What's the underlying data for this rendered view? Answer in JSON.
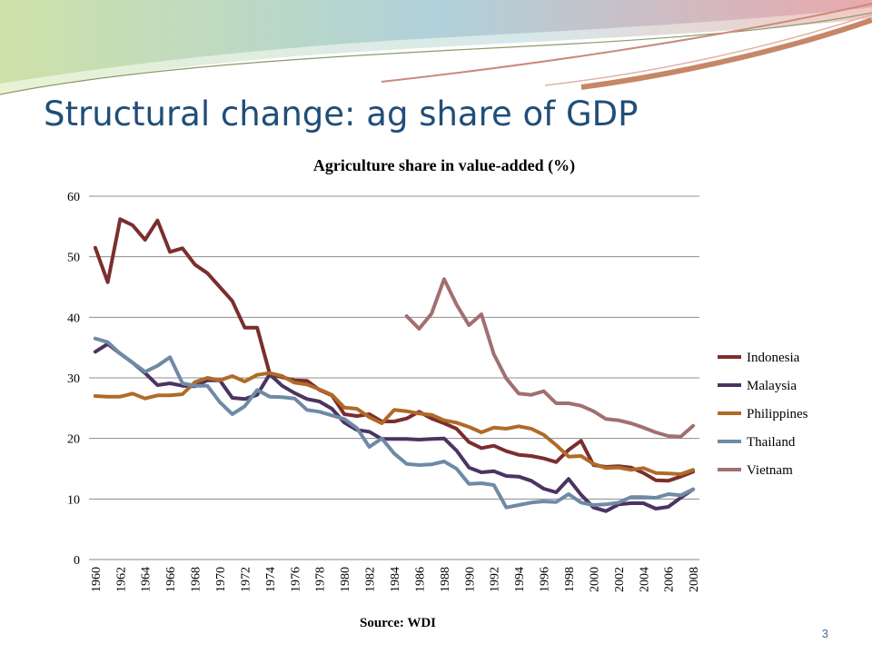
{
  "slide": {
    "title": "Structural change: ag share of GDP",
    "page_number": "3"
  },
  "colors": {
    "title": "#1f4e79",
    "Indonesia": "#7b2e2e",
    "Malaysia": "#4b3461",
    "Philippines": "#b06a28",
    "Thailand": "#6f8aa6",
    "Vietnam": "#a26f70"
  },
  "chart_data": {
    "type": "line",
    "title": "Agriculture share in value-added (%)",
    "xlabel": "Source: WDI",
    "ylabel": "",
    "ylim": [
      0,
      60
    ],
    "yticks": [
      "0",
      "10",
      "20",
      "30",
      "40",
      "50",
      "60"
    ],
    "xticks": [
      "1960",
      "1962",
      "1964",
      "1966",
      "1968",
      "1970",
      "1972",
      "1974",
      "1976",
      "1978",
      "1980",
      "1982",
      "1984",
      "1986",
      "1988",
      "1990",
      "1992",
      "1994",
      "1996",
      "1998",
      "2000",
      "2002",
      "2004",
      "2006",
      "2008"
    ],
    "grid": true,
    "legend_position": "right",
    "x": [
      1960,
      1961,
      1962,
      1963,
      1964,
      1965,
      1966,
      1967,
      1968,
      1969,
      1970,
      1971,
      1972,
      1973,
      1974,
      1975,
      1976,
      1977,
      1978,
      1979,
      1980,
      1981,
      1982,
      1983,
      1984,
      1985,
      1986,
      1987,
      1988,
      1989,
      1990,
      1991,
      1992,
      1993,
      1994,
      1995,
      1996,
      1997,
      1998,
      1999,
      2000,
      2001,
      2002,
      2003,
      2004,
      2005,
      2006,
      2007,
      2008
    ],
    "series": [
      {
        "name": "Indonesia",
        "values": [
          51.5,
          45.8,
          56.2,
          55.2,
          52.8,
          56.0,
          50.8,
          51.4,
          48.7,
          47.3,
          45.0,
          42.7,
          38.3,
          38.3,
          30.7,
          30.1,
          29.6,
          29.5,
          28.0,
          27.1,
          24.0,
          23.7,
          24.0,
          22.8,
          22.8,
          23.3,
          24.4,
          23.3,
          22.5,
          21.6,
          19.4,
          18.4,
          18.8,
          17.9,
          17.3,
          17.1,
          16.7,
          16.1,
          18.1,
          19.6,
          15.6,
          15.3,
          15.4,
          15.2,
          14.3,
          13.1,
          13.0,
          13.7,
          14.5
        ]
      },
      {
        "name": "Malaysia",
        "values": [
          34.3,
          35.6,
          34.0,
          32.5,
          30.8,
          28.8,
          29.1,
          28.7,
          28.6,
          29.6,
          29.6,
          26.7,
          26.5,
          27.2,
          30.6,
          28.7,
          27.5,
          26.5,
          26.1,
          24.9,
          22.6,
          21.4,
          21.1,
          19.9,
          19.9,
          19.9,
          19.8,
          19.9,
          20.0,
          18.0,
          15.2,
          14.4,
          14.6,
          13.8,
          13.7,
          13.0,
          11.7,
          11.1,
          13.3,
          10.7,
          8.6,
          8.0,
          9.1,
          9.3,
          9.3,
          8.4,
          8.7,
          10.2,
          11.6
        ]
      },
      {
        "name": "Philippines",
        "values": [
          27.0,
          26.9,
          26.9,
          27.4,
          26.6,
          27.1,
          27.1,
          27.3,
          29.3,
          30.0,
          29.6,
          30.3,
          29.4,
          30.5,
          30.8,
          30.3,
          29.2,
          28.9,
          28.1,
          27.2,
          25.1,
          24.9,
          23.5,
          22.5,
          24.7,
          24.5,
          24.1,
          23.9,
          23.0,
          22.6,
          21.9,
          21.0,
          21.8,
          21.6,
          22.0,
          21.6,
          20.6,
          18.9,
          17.0,
          17.1,
          15.8,
          15.1,
          15.2,
          14.8,
          15.1,
          14.3,
          14.2,
          14.1,
          14.8
        ]
      },
      {
        "name": "Thailand",
        "values": [
          36.5,
          35.9,
          34.0,
          32.5,
          31.0,
          32.0,
          33.4,
          29.1,
          28.7,
          28.7,
          26.0,
          24.0,
          25.3,
          28.0,
          26.9,
          26.8,
          26.6,
          24.7,
          24.4,
          23.8,
          23.2,
          21.7,
          18.6,
          20.0,
          17.5,
          15.8,
          15.6,
          15.7,
          16.2,
          15.0,
          12.5,
          12.6,
          12.3,
          8.6,
          9.0,
          9.4,
          9.6,
          9.5,
          10.8,
          9.4,
          9.0,
          9.1,
          9.4,
          10.3,
          10.3,
          10.2,
          10.8,
          10.6,
          11.6
        ]
      },
      {
        "name": "Vietnam",
        "values": [
          null,
          null,
          null,
          null,
          null,
          null,
          null,
          null,
          null,
          null,
          null,
          null,
          null,
          null,
          null,
          null,
          null,
          null,
          null,
          null,
          null,
          null,
          null,
          null,
          null,
          40.2,
          38.1,
          40.6,
          46.3,
          42.1,
          38.7,
          40.5,
          33.9,
          29.9,
          27.4,
          27.2,
          27.8,
          25.8,
          25.8,
          25.4,
          24.5,
          23.2,
          23.0,
          22.5,
          21.8,
          21.0,
          20.4,
          20.3,
          22.1
        ]
      }
    ]
  }
}
